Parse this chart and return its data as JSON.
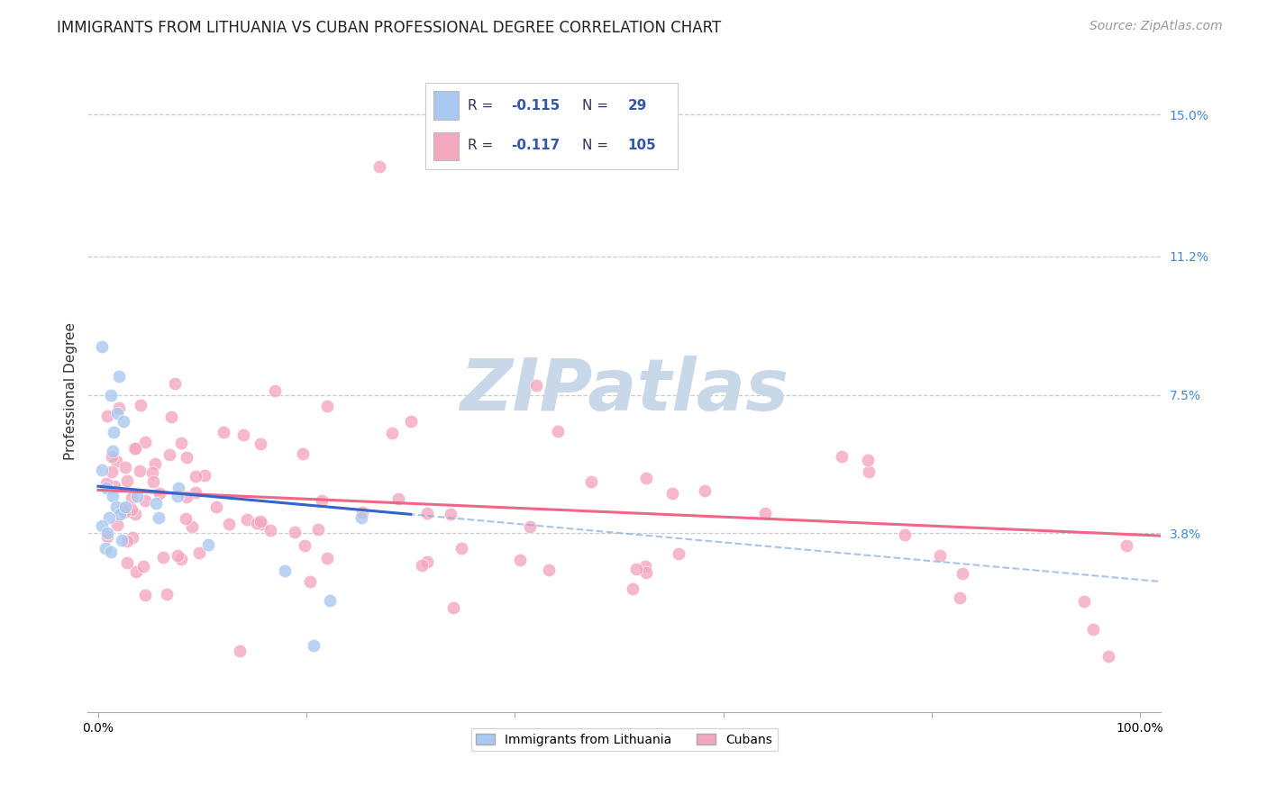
{
  "title": "IMMIGRANTS FROM LITHUANIA VS CUBAN PROFESSIONAL DEGREE CORRELATION CHART",
  "source": "Source: ZipAtlas.com",
  "ylabel": "Professional Degree",
  "xlim": [
    -0.01,
    1.02
  ],
  "ylim": [
    -0.01,
    0.162
  ],
  "ytick_vals": [
    0.038,
    0.075,
    0.112,
    0.15
  ],
  "ytick_labels": [
    "3.8%",
    "7.5%",
    "11.2%",
    "15.0%"
  ],
  "xtick_vals": [
    0.0,
    0.2,
    0.4,
    0.6,
    0.8,
    1.0
  ],
  "xtick_labels": [
    "0.0%",
    "",
    "",
    "",
    "",
    "100.0%"
  ],
  "legend_text_color": "#3355aa",
  "legend_r1": "R = -0.115",
  "legend_n1": "N =  29",
  "legend_r2": "R = -0.117",
  "legend_n2": "N = 105",
  "lithuania_color": "#aac8f0",
  "cuba_color": "#f4a8c0",
  "trend_lith_color": "#3366cc",
  "trend_cuba_color": "#ee6688",
  "trend_dash_color": "#88aadd",
  "background_color": "#ffffff",
  "grid_color": "#cccccc",
  "watermark": "ZIPatlas",
  "watermark_color": "#c8d8e8",
  "right_tick_color": "#4488cc",
  "title_fontsize": 12,
  "source_fontsize": 10,
  "tick_fontsize": 10,
  "ylabel_fontsize": 11,
  "legend_fontsize": 11
}
